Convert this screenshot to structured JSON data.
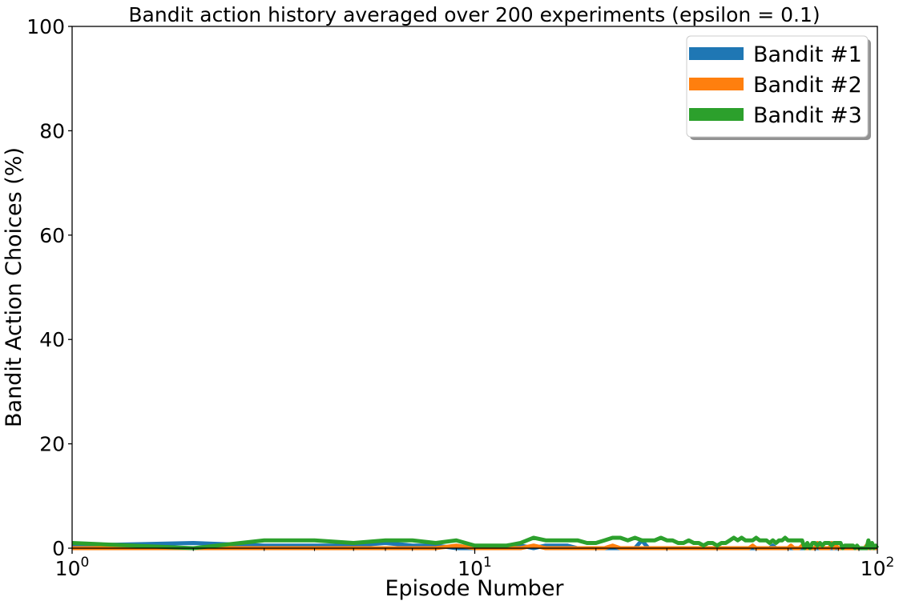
{
  "chart_data": {
    "type": "line",
    "title": "Bandit action history averaged over 200 experiments (epsilon = 0.1)",
    "xlabel": "Episode Number",
    "ylabel": "Bandit Action Choices (%)",
    "xscale": "log",
    "xlim": [
      1,
      100
    ],
    "ylim": [
      0,
      100
    ],
    "x_ticks": [
      {
        "value": 1,
        "base": "10",
        "exp": "0"
      },
      {
        "value": 10,
        "base": "10",
        "exp": "1"
      },
      {
        "value": 100,
        "base": "10",
        "exp": "2"
      }
    ],
    "y_ticks": [
      {
        "value": 0,
        "label": "0"
      },
      {
        "value": 20,
        "label": "20"
      },
      {
        "value": 40,
        "label": "40"
      },
      {
        "value": 60,
        "label": "60"
      },
      {
        "value": 80,
        "label": "80"
      },
      {
        "value": 100,
        "label": "100"
      }
    ],
    "grid": false,
    "legend_position": "top-right",
    "series": [
      {
        "name": "Bandit #1",
        "color": "#1f77b4",
        "x": [
          1,
          2,
          3,
          4,
          5,
          6,
          7,
          8,
          9,
          10,
          11,
          12,
          13,
          14,
          15,
          16,
          17,
          18,
          19,
          20,
          21,
          22,
          23,
          24,
          25,
          26,
          27,
          28,
          29,
          30,
          31,
          32,
          33,
          34,
          35,
          36,
          37,
          38,
          39,
          40,
          41,
          42,
          43,
          44,
          45,
          46,
          47,
          48,
          49,
          50,
          51,
          52,
          53,
          54,
          55,
          56,
          57,
          58,
          59,
          60,
          61,
          62,
          63,
          64,
          65,
          66,
          67,
          68,
          69,
          70,
          71,
          72,
          73,
          74,
          75,
          76,
          77,
          78,
          79,
          80,
          81,
          82,
          83,
          84,
          85,
          86,
          87,
          88,
          89,
          90,
          91,
          92,
          93,
          94,
          95,
          96,
          97,
          98,
          99,
          100
        ],
        "y": [
          0.5,
          1,
          0.5,
          0.5,
          0.5,
          1,
          0.5,
          0.5,
          0,
          0,
          0,
          0,
          0.5,
          0,
          0.5,
          0.5,
          0.5,
          0,
          0,
          0,
          0,
          0,
          0,
          0,
          0,
          1.5,
          0,
          0,
          0,
          0,
          0,
          0,
          0,
          0,
          0,
          0,
          0,
          0,
          0,
          0,
          0,
          0,
          0,
          0,
          0,
          0,
          0,
          0,
          0,
          0,
          0,
          0,
          0,
          0,
          0.5,
          0,
          0,
          0,
          0,
          0,
          0,
          0,
          0,
          0,
          0,
          0,
          0,
          0,
          0,
          0,
          0,
          0,
          0,
          0,
          0,
          0,
          0,
          0,
          0,
          0,
          0,
          0,
          0,
          0,
          0,
          0,
          0,
          0,
          0,
          0,
          0,
          0,
          0,
          0,
          0,
          0,
          0,
          0,
          0,
          0
        ]
      },
      {
        "name": "Bandit #2",
        "color": "#ff7f0e",
        "x": [
          1,
          2,
          3,
          4,
          5,
          6,
          7,
          8,
          9,
          10,
          11,
          12,
          13,
          14,
          15,
          16,
          17,
          18,
          19,
          20,
          21,
          22,
          23,
          24,
          25,
          26,
          27,
          28,
          29,
          30,
          31,
          32,
          33,
          34,
          35,
          36,
          37,
          38,
          39,
          40,
          41,
          42,
          43,
          44,
          45,
          46,
          47,
          48,
          49,
          50,
          51,
          52,
          53,
          54,
          55,
          56,
          57,
          58,
          59,
          60,
          61,
          62,
          63,
          64,
          65,
          66,
          67,
          68,
          69,
          70,
          71,
          72,
          73,
          74,
          75,
          76,
          77,
          78,
          79,
          80,
          81,
          82,
          83,
          84,
          85,
          86,
          87,
          88,
          89,
          90,
          91,
          92,
          93,
          94,
          95,
          96,
          97,
          98,
          99,
          100
        ],
        "y": [
          0,
          0,
          0,
          0,
          0,
          0,
          0,
          0,
          0.5,
          0,
          0,
          0,
          0,
          0.5,
          0,
          0,
          0,
          0,
          0,
          0,
          0,
          0.5,
          0,
          0,
          0,
          0,
          0,
          0,
          0,
          0,
          0,
          0,
          0,
          0,
          0,
          0,
          0,
          0,
          0,
          0,
          0,
          0,
          0,
          0,
          0,
          0,
          0,
          0,
          0.5,
          0,
          0,
          0,
          0,
          0,
          0,
          0,
          0,
          0,
          0,
          0,
          0.5,
          0,
          0,
          0,
          0.5,
          0,
          0,
          0,
          0,
          0,
          1,
          0,
          0,
          0,
          0,
          0,
          1,
          0,
          0.5,
          0,
          0,
          0,
          0,
          0,
          0,
          0,
          0,
          0,
          0,
          0,
          0,
          0,
          0,
          0.5,
          0,
          0,
          0,
          0,
          0,
          0
        ]
      },
      {
        "name": "Bandit #3",
        "color": "#2ca02c",
        "x": [
          1,
          2,
          3,
          4,
          5,
          6,
          7,
          8,
          9,
          10,
          11,
          12,
          13,
          14,
          15,
          16,
          17,
          18,
          19,
          20,
          21,
          22,
          23,
          24,
          25,
          26,
          27,
          28,
          29,
          30,
          31,
          32,
          33,
          34,
          35,
          36,
          37,
          38,
          39,
          40,
          41,
          42,
          43,
          44,
          45,
          46,
          47,
          48,
          49,
          50,
          51,
          52,
          53,
          54,
          55,
          56,
          57,
          58,
          59,
          60,
          61,
          62,
          63,
          64,
          65,
          66,
          67,
          68,
          69,
          70,
          71,
          72,
          73,
          74,
          75,
          76,
          77,
          78,
          79,
          80,
          81,
          82,
          83,
          84,
          85,
          86,
          87,
          88,
          89,
          90,
          91,
          92,
          93,
          94,
          95,
          96,
          97,
          98,
          99,
          100
        ],
        "y": [
          1,
          0,
          1.5,
          1.5,
          1,
          1.5,
          1.5,
          1,
          1.5,
          0.5,
          0.5,
          0.5,
          1,
          2,
          1.5,
          1.5,
          1.5,
          1.5,
          1,
          1,
          1.5,
          2,
          2,
          1.5,
          2,
          1.5,
          1.5,
          1.5,
          2,
          1.5,
          1.5,
          1,
          1,
          1.5,
          1,
          1,
          0.5,
          1,
          1,
          0.5,
          1,
          1,
          1.5,
          2,
          1.5,
          2,
          1.5,
          1.5,
          1.5,
          2,
          1.5,
          1.5,
          1.5,
          1,
          1.5,
          1,
          1.5,
          1.5,
          2,
          1.5,
          1.5,
          1.5,
          1.5,
          1.5,
          1.5,
          0,
          1,
          0,
          1,
          1,
          0.5,
          1,
          0.5,
          1,
          1,
          1,
          0.5,
          1,
          1,
          1,
          1,
          0,
          0.5,
          0.5,
          0.5,
          0.5,
          0.5,
          0,
          0.5,
          0,
          0,
          0,
          0,
          0,
          1.5,
          0,
          1,
          0,
          0.5,
          0
        ]
      }
    ]
  }
}
